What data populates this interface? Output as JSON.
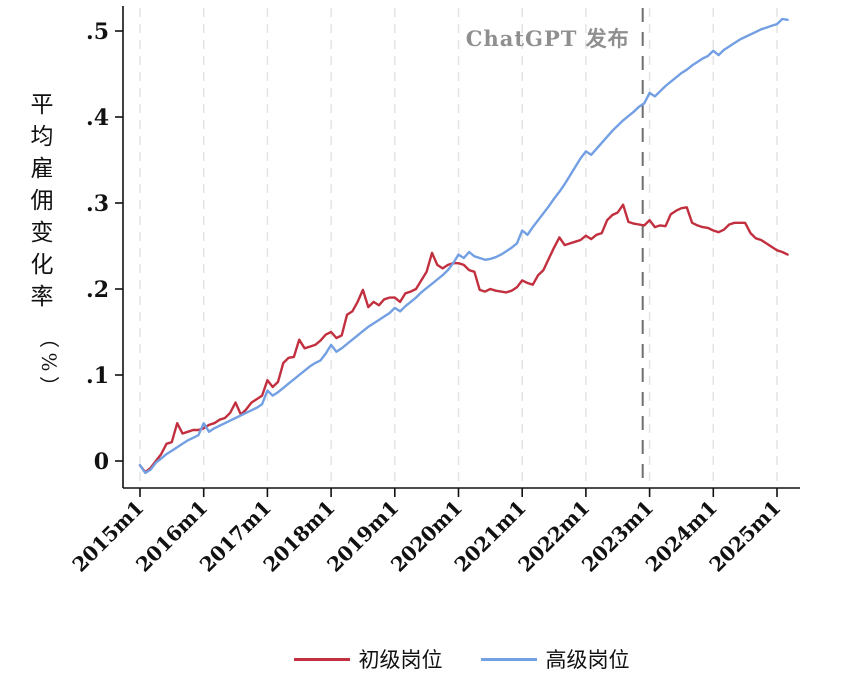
{
  "figure": {
    "background": "#ffffff",
    "annotation": {
      "text": "ChatGPT 发布",
      "color": "#8f8f8f"
    },
    "event": {
      "label": "ChatGPT 发布",
      "month_index": 94.7,
      "line_color": "#6e6e6e"
    },
    "colors": {
      "axis": "#111111",
      "gridline": "#e4e4e4",
      "junior_series": "#c2303f",
      "senior_series": "#739fe3"
    },
    "y_axis": {
      "title": "平均雇佣变化率（%）",
      "title_upright_chars": [
        "平",
        "均",
        "雇",
        "佣",
        "变",
        "化",
        "率"
      ],
      "title_rotated_chars": [
        "（",
        "%",
        "）"
      ],
      "tick_values": [
        0,
        0.1,
        0.2,
        0.3,
        0.4,
        0.5
      ],
      "tick_labels": [
        "0",
        ".1",
        ".2",
        ".3",
        ".4",
        ".5"
      ]
    },
    "x_axis": {
      "tick_labels": [
        "2015m1",
        "2016m1",
        "2017m1",
        "2018m1",
        "2019m1",
        "2020m1",
        "2021m1",
        "2022m1",
        "2023m1",
        "2024m1",
        "2025m1"
      ]
    },
    "legend": [
      {
        "label": "初级岗位",
        "color": "#c2303f"
      },
      {
        "label": "高级岗位",
        "color": "#739fe3"
      }
    ]
  },
  "chart_data": {
    "type": "line",
    "title": "",
    "ylabel": "平均雇佣变化率（%）",
    "xlabel": "",
    "x_unit": "month",
    "x_start": "2015m1",
    "x_end": "2025m3",
    "x_tick_labels": [
      "2015m1",
      "2016m1",
      "2017m1",
      "2018m1",
      "2019m1",
      "2020m1",
      "2021m1",
      "2022m1",
      "2023m1",
      "2024m1",
      "2025m1"
    ],
    "ylim": [
      -0.02,
      0.52
    ],
    "grid": "vertical-dashed",
    "legend_position": "bottom-center",
    "event_annotation": {
      "text": "ChatGPT 发布",
      "x": "2022m11"
    },
    "series": [
      {
        "name": "初级岗位",
        "color": "#c2303f",
        "values": [
          -0.005,
          -0.013,
          -0.008,
          0.0,
          0.008,
          0.02,
          0.022,
          0.044,
          0.032,
          0.034,
          0.036,
          0.036,
          0.038,
          0.042,
          0.044,
          0.048,
          0.05,
          0.056,
          0.068,
          0.054,
          0.06,
          0.068,
          0.072,
          0.076,
          0.094,
          0.086,
          0.092,
          0.114,
          0.12,
          0.121,
          0.141,
          0.131,
          0.133,
          0.135,
          0.14,
          0.147,
          0.15,
          0.143,
          0.146,
          0.17,
          0.174,
          0.185,
          0.199,
          0.179,
          0.185,
          0.181,
          0.188,
          0.19,
          0.19,
          0.185,
          0.195,
          0.197,
          0.2,
          0.21,
          0.22,
          0.242,
          0.228,
          0.224,
          0.228,
          0.23,
          0.23,
          0.228,
          0.222,
          0.22,
          0.199,
          0.197,
          0.2,
          0.198,
          0.197,
          0.196,
          0.198,
          0.202,
          0.21,
          0.207,
          0.205,
          0.216,
          0.222,
          0.235,
          0.248,
          0.26,
          0.251,
          0.253,
          0.255,
          0.257,
          0.262,
          0.258,
          0.263,
          0.265,
          0.28,
          0.286,
          0.289,
          0.298,
          0.278,
          0.276,
          0.275,
          0.274,
          0.28,
          0.272,
          0.274,
          0.273,
          0.287,
          0.291,
          0.294,
          0.295,
          0.277,
          0.274,
          0.272,
          0.271,
          0.268,
          0.266,
          0.269,
          0.275,
          0.277,
          0.277,
          0.277,
          0.265,
          0.259,
          0.257,
          0.253,
          0.249,
          0.245,
          0.243,
          0.24
        ]
      },
      {
        "name": "高级岗位",
        "color": "#739fe3",
        "values": [
          -0.005,
          -0.014,
          -0.01,
          -0.002,
          0.003,
          0.008,
          0.012,
          0.016,
          0.02,
          0.024,
          0.027,
          0.03,
          0.044,
          0.034,
          0.038,
          0.041,
          0.044,
          0.047,
          0.05,
          0.053,
          0.056,
          0.059,
          0.062,
          0.066,
          0.082,
          0.076,
          0.08,
          0.085,
          0.09,
          0.095,
          0.1,
          0.105,
          0.11,
          0.114,
          0.117,
          0.125,
          0.135,
          0.127,
          0.131,
          0.136,
          0.141,
          0.146,
          0.151,
          0.156,
          0.16,
          0.164,
          0.168,
          0.172,
          0.178,
          0.174,
          0.18,
          0.185,
          0.19,
          0.196,
          0.201,
          0.206,
          0.211,
          0.216,
          0.222,
          0.23,
          0.24,
          0.236,
          0.243,
          0.238,
          0.236,
          0.234,
          0.235,
          0.237,
          0.24,
          0.244,
          0.248,
          0.253,
          0.268,
          0.263,
          0.272,
          0.28,
          0.288,
          0.296,
          0.305,
          0.313,
          0.322,
          0.332,
          0.342,
          0.352,
          0.36,
          0.356,
          0.363,
          0.37,
          0.377,
          0.384,
          0.39,
          0.396,
          0.401,
          0.406,
          0.412,
          0.416,
          0.428,
          0.424,
          0.43,
          0.436,
          0.441,
          0.446,
          0.451,
          0.455,
          0.46,
          0.464,
          0.468,
          0.471,
          0.477,
          0.472,
          0.478,
          0.482,
          0.486,
          0.49,
          0.493,
          0.496,
          0.499,
          0.502,
          0.504,
          0.506,
          0.508,
          0.514,
          0.513
        ]
      }
    ]
  }
}
